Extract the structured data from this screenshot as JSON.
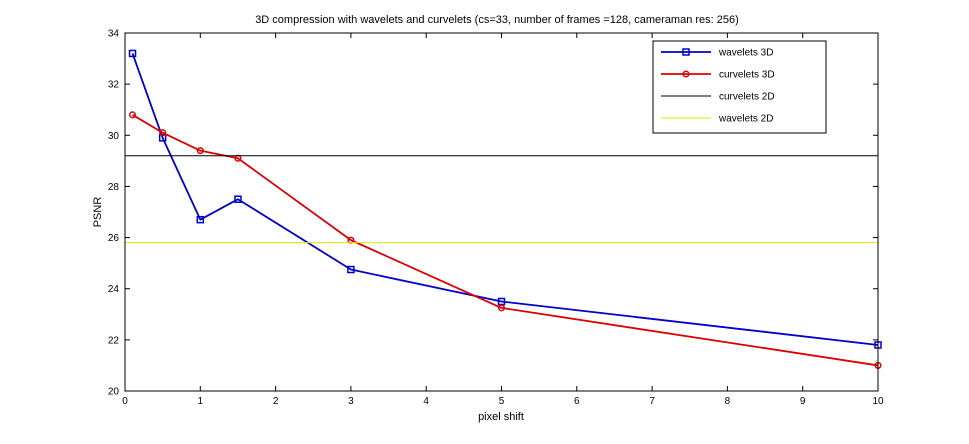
{
  "figure": {
    "background": "#ffffff",
    "axes_background": "#ffffff"
  },
  "chart_data": {
    "type": "line",
    "title": "3D compression with wavelets and curvelets  (cs=33, number of frames =128, cameraman res: 256)",
    "xlabel": "pixel shift",
    "ylabel": "PSNR",
    "xlim": [
      0,
      10
    ],
    "ylim": [
      20,
      34
    ],
    "xticks": [
      0,
      1,
      2,
      3,
      4,
      5,
      6,
      7,
      8,
      9,
      10
    ],
    "yticks": [
      20,
      22,
      24,
      26,
      28,
      30,
      32,
      34
    ],
    "grid": false,
    "legend_position": "top-right",
    "series": [
      {
        "name": "wavelets 3D",
        "color": "#0000cc",
        "marker": "square",
        "x": [
          0.1,
          0.5,
          1,
          1.5,
          3,
          5,
          10
        ],
        "y": [
          33.2,
          29.9,
          26.7,
          27.5,
          24.75,
          23.5,
          21.8
        ]
      },
      {
        "name": "curvelets 3D",
        "color": "#dd0000",
        "marker": "circle",
        "x": [
          0.1,
          0.5,
          1,
          1.5,
          3,
          5,
          10
        ],
        "y": [
          30.8,
          30.1,
          29.4,
          29.1,
          25.9,
          23.25,
          21.0
        ]
      },
      {
        "name": "curvelets 2D",
        "color": "#000000",
        "marker": "none",
        "constant_y": 29.2
      },
      {
        "name": "wavelets 2D",
        "color": "#e6e600",
        "marker": "none",
        "constant_y": 25.8
      }
    ]
  }
}
